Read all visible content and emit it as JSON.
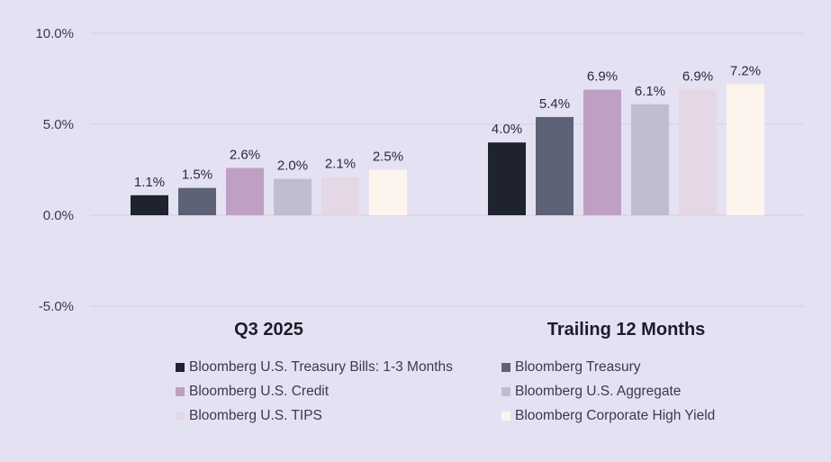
{
  "chart_data": {
    "type": "bar",
    "categories": [
      "Q3 2025",
      "Trailing 12 Months"
    ],
    "series": [
      {
        "name": "Bloomberg U.S. Treasury Bills: 1-3 Months",
        "color": "#1e232e",
        "values": [
          1.1,
          4.0
        ],
        "labels": [
          "1.1%",
          "4.0%"
        ]
      },
      {
        "name": "Bloomberg Treasury",
        "color": "#5e6277",
        "values": [
          1.5,
          5.4
        ],
        "labels": [
          "1.5%",
          "5.4%"
        ]
      },
      {
        "name": "Bloomberg U.S. Credit",
        "color": "#bf9fc4",
        "values": [
          2.6,
          6.9
        ],
        "labels": [
          "2.6%",
          "6.9%"
        ]
      },
      {
        "name": "Bloomberg U.S. Aggregate",
        "color": "#bfbdcf",
        "values": [
          2.0,
          6.1
        ],
        "labels": [
          "2.0%",
          "6.1%"
        ]
      },
      {
        "name": "Bloomberg U.S. TIPS",
        "color": "#e5d7e6",
        "values": [
          2.1,
          6.9
        ],
        "labels": [
          "2.1%",
          "6.9%"
        ]
      },
      {
        "name": "Bloomberg Corporate High Yield",
        "color": "#fdf4ee",
        "values": [
          2.5,
          7.2
        ],
        "labels": [
          "2.5%",
          "7.2%"
        ]
      }
    ],
    "ylim": [
      -5,
      10
    ],
    "yticks": [
      10,
      5,
      0,
      -5
    ],
    "ytick_labels": [
      "10.0%",
      "5.0%",
      "0.0%",
      "-5.0%"
    ],
    "grid": true,
    "legend_position": "bottom",
    "title": "",
    "xlabel": "",
    "ylabel": ""
  }
}
